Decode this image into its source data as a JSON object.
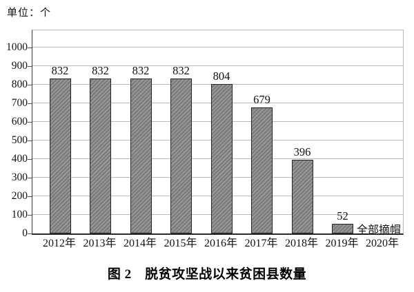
{
  "figure": {
    "unit_label": "单位：个",
    "caption": "图 2　脱贫攻坚战以来贫困县数量"
  },
  "chart_data": {
    "type": "bar",
    "title": "图 2　脱贫攻坚战以来贫困县数量",
    "unit_label": "单位：个",
    "categories": [
      "2012年",
      "2013年",
      "2014年",
      "2015年",
      "2016年",
      "2017年",
      "2018年",
      "2019年",
      "2020年"
    ],
    "values": [
      832,
      832,
      832,
      832,
      804,
      679,
      396,
      52,
      0
    ],
    "value_labels_shown": [
      "832",
      "832",
      "832",
      "832",
      "804",
      "679",
      "396",
      "52"
    ],
    "annotation": {
      "text": "全部摘帽",
      "near_category": "2019年"
    },
    "xlabel": "",
    "ylabel": "个",
    "ylim": [
      0,
      1100
    ],
    "yticks": [
      0,
      100,
      200,
      300,
      400,
      500,
      600,
      700,
      800,
      900,
      1000
    ],
    "grid": true,
    "legend_position": "none",
    "colors": {
      "bar_fill": "#8c8c8c",
      "bar_hatch_light": "#9d9d9d",
      "bar_hatch_dark": "#7b7b7b",
      "bar_border": "#222222",
      "gridline": "#b9b9b9",
      "axis": "#2a2a2a",
      "text": "#111111"
    }
  }
}
